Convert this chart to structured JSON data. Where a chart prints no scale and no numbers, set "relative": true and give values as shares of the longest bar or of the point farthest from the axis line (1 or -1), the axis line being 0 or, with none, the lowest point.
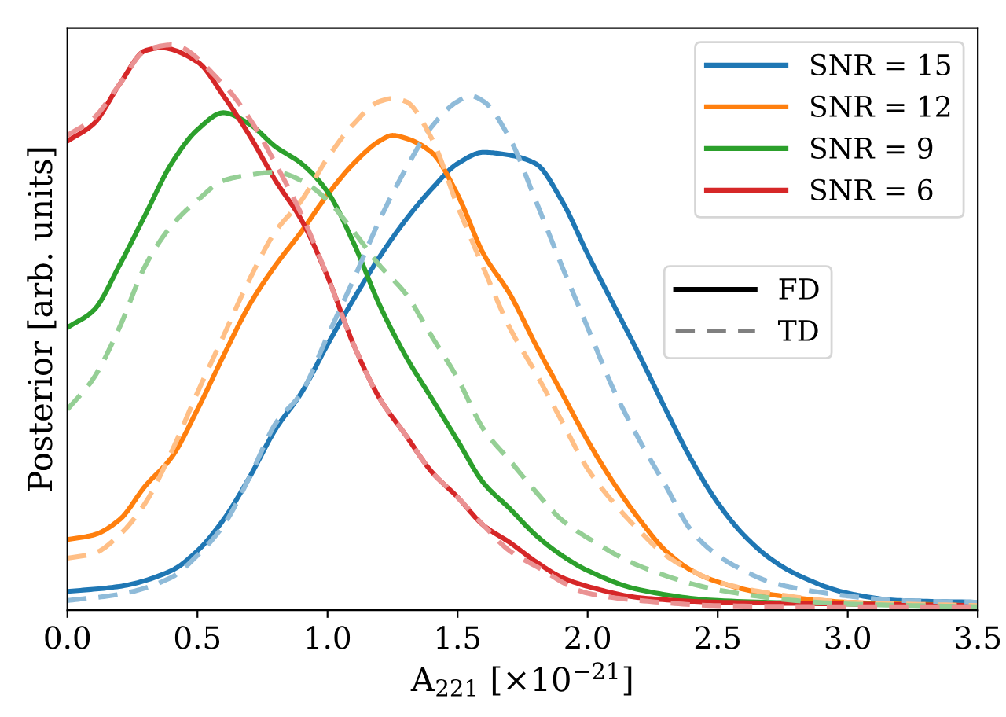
{
  "chart_data": {
    "type": "line",
    "relative": true,
    "xlabel": "A$_{221}$ [×10$^{−21}$]",
    "ylabel": "Posterior [arb. units]",
    "xlim": [
      0,
      3.5
    ],
    "xticks": [
      {
        "value": 0,
        "label": "0.0"
      },
      {
        "value": 0.5,
        "label": "0.5"
      },
      {
        "value": 1,
        "label": "1.0"
      },
      {
        "value": 1.5,
        "label": "1.5"
      },
      {
        "value": 2,
        "label": "2.0"
      },
      {
        "value": 2.5,
        "label": "2.5"
      },
      {
        "value": 3,
        "label": "3.0"
      },
      {
        "value": 3.5,
        "label": "3.5"
      }
    ],
    "legend": "top right",
    "annotations": [
      "FD",
      "TD"
    ],
    "series": [
      {
        "name": "SNR = 15",
        "color": "#1f77b4",
        "line_style": "solid",
        "x": [
          0,
          0.2,
          0.4,
          0.5,
          0.6,
          0.7,
          0.8,
          0.9,
          1.0,
          1.1,
          1.2,
          1.3,
          1.4,
          1.5,
          1.6,
          1.7,
          1.8,
          1.9,
          2.0,
          2.1,
          2.2,
          2.3,
          2.4,
          2.5,
          2.6,
          2.7,
          2.8,
          3.0,
          3.2,
          3.5
        ],
        "values": [
          0.033,
          0.042,
          0.07,
          0.105,
          0.16,
          0.235,
          0.32,
          0.385,
          0.47,
          0.55,
          0.625,
          0.69,
          0.745,
          0.79,
          0.81,
          0.805,
          0.79,
          0.725,
          0.63,
          0.54,
          0.45,
          0.355,
          0.265,
          0.19,
          0.133,
          0.092,
          0.064,
          0.03,
          0.017,
          0.014
        ]
      },
      {
        "name": "SNR = 12",
        "color": "#ff7f0e",
        "line_style": "solid",
        "x": [
          0,
          0.1,
          0.2,
          0.3,
          0.4,
          0.5,
          0.6,
          0.7,
          0.8,
          0.9,
          1.0,
          1.1,
          1.2,
          1.25,
          1.3,
          1.4,
          1.5,
          1.6,
          1.7,
          1.8,
          1.9,
          2.0,
          2.1,
          2.2,
          2.3,
          2.4,
          2.5,
          2.7,
          3.0,
          3.5
        ],
        "values": [
          0.125,
          0.133,
          0.16,
          0.22,
          0.27,
          0.355,
          0.45,
          0.54,
          0.61,
          0.67,
          0.735,
          0.79,
          0.83,
          0.84,
          0.835,
          0.81,
          0.735,
          0.63,
          0.56,
          0.47,
          0.385,
          0.3,
          0.225,
          0.16,
          0.105,
          0.07,
          0.05,
          0.028,
          0.014,
          0.008
        ]
      },
      {
        "name": "SNR = 9",
        "color": "#2ca02c",
        "line_style": "solid",
        "x": [
          0,
          0.1,
          0.2,
          0.3,
          0.4,
          0.5,
          0.6,
          0.7,
          0.8,
          0.9,
          1.0,
          1.1,
          1.2,
          1.3,
          1.4,
          1.5,
          1.6,
          1.7,
          1.8,
          1.9,
          2.0,
          2.2,
          2.5,
          3.0,
          3.5
        ],
        "values": [
          0.5,
          0.53,
          0.61,
          0.7,
          0.79,
          0.85,
          0.88,
          0.86,
          0.82,
          0.79,
          0.74,
          0.65,
          0.54,
          0.45,
          0.375,
          0.3,
          0.225,
          0.18,
          0.133,
          0.097,
          0.07,
          0.036,
          0.017,
          0.011,
          0.008
        ]
      },
      {
        "name": "SNR = 6",
        "color": "#d62728",
        "line_style": "solid",
        "x": [
          0,
          0.1,
          0.2,
          0.3,
          0.36,
          0.5,
          0.6,
          0.7,
          0.8,
          0.9,
          1.0,
          1.1,
          1.2,
          1.3,
          1.4,
          1.5,
          1.6,
          1.7,
          1.8,
          1.9,
          2.0,
          2.2,
          2.5,
          3.0,
          3.5
        ],
        "values": [
          0.83,
          0.86,
          0.93,
          0.99,
          0.995,
          0.97,
          0.91,
          0.84,
          0.76,
          0.69,
          0.59,
          0.47,
          0.375,
          0.31,
          0.245,
          0.2,
          0.15,
          0.12,
          0.086,
          0.058,
          0.042,
          0.022,
          0.014,
          0.011,
          0.008
        ]
      },
      {
        "color": "#8fbbd9",
        "line_style": "dashed",
        "x": [
          0,
          0.2,
          0.4,
          0.5,
          0.6,
          0.7,
          0.8,
          0.9,
          1.0,
          1.1,
          1.2,
          1.3,
          1.4,
          1.5,
          1.55,
          1.6,
          1.7,
          1.8,
          1.9,
          2.0,
          2.1,
          2.2,
          2.3,
          2.4,
          2.5,
          2.6,
          2.7,
          2.8,
          3.0,
          3.2,
          3.5
        ],
        "values": [
          0.017,
          0.028,
          0.058,
          0.097,
          0.15,
          0.235,
          0.33,
          0.385,
          0.485,
          0.585,
          0.69,
          0.78,
          0.855,
          0.9,
          0.91,
          0.9,
          0.835,
          0.725,
          0.61,
          0.5,
          0.39,
          0.3,
          0.22,
          0.14,
          0.097,
          0.07,
          0.05,
          0.039,
          0.025,
          0.017,
          0.014
        ]
      },
      {
        "color": "#ffbf86",
        "line_style": "dashed",
        "x": [
          0,
          0.1,
          0.2,
          0.3,
          0.4,
          0.5,
          0.6,
          0.7,
          0.8,
          0.9,
          1.0,
          1.1,
          1.2,
          1.25,
          1.3,
          1.4,
          1.5,
          1.6,
          1.7,
          1.8,
          1.9,
          2.0,
          2.1,
          2.2,
          2.3,
          2.4,
          2.5,
          2.7,
          3.0,
          3.5
        ],
        "values": [
          0.092,
          0.1,
          0.133,
          0.19,
          0.28,
          0.385,
          0.485,
          0.585,
          0.67,
          0.725,
          0.8,
          0.86,
          0.9,
          0.905,
          0.9,
          0.835,
          0.715,
          0.605,
          0.5,
          0.42,
          0.335,
          0.25,
          0.19,
          0.14,
          0.097,
          0.07,
          0.05,
          0.03,
          0.014,
          0.008
        ]
      },
      {
        "color": "#95cf95",
        "line_style": "dashed",
        "x": [
          0,
          0.1,
          0.2,
          0.3,
          0.4,
          0.5,
          0.6,
          0.7,
          0.8,
          0.9,
          1.0,
          1.1,
          1.2,
          1.3,
          1.4,
          1.5,
          1.6,
          1.7,
          1.8,
          1.9,
          2.0,
          2.2,
          2.5,
          2.8,
          3.0,
          3.5
        ],
        "values": [
          0.355,
          0.41,
          0.5,
          0.61,
          0.68,
          0.725,
          0.76,
          0.77,
          0.775,
          0.76,
          0.725,
          0.67,
          0.61,
          0.56,
          0.485,
          0.41,
          0.32,
          0.265,
          0.21,
          0.16,
          0.128,
          0.078,
          0.036,
          0.017,
          0.011,
          0.006
        ]
      },
      {
        "color": "#ea9293",
        "line_style": "dashed",
        "x": [
          0,
          0.1,
          0.2,
          0.3,
          0.4,
          0.6,
          0.7,
          0.8,
          0.9,
          1.0,
          1.1,
          1.2,
          1.3,
          1.4,
          1.5,
          1.6,
          1.7,
          1.8,
          2.0,
          2.2,
          2.5,
          3.0,
          3.5
        ],
        "values": [
          0.84,
          0.87,
          0.93,
          0.99,
          1.0,
          0.93,
          0.87,
          0.79,
          0.7,
          0.59,
          0.47,
          0.375,
          0.31,
          0.245,
          0.2,
          0.15,
          0.105,
          0.078,
          0.03,
          0.017,
          0.008,
          0.006,
          0.006
        ]
      }
    ]
  }
}
